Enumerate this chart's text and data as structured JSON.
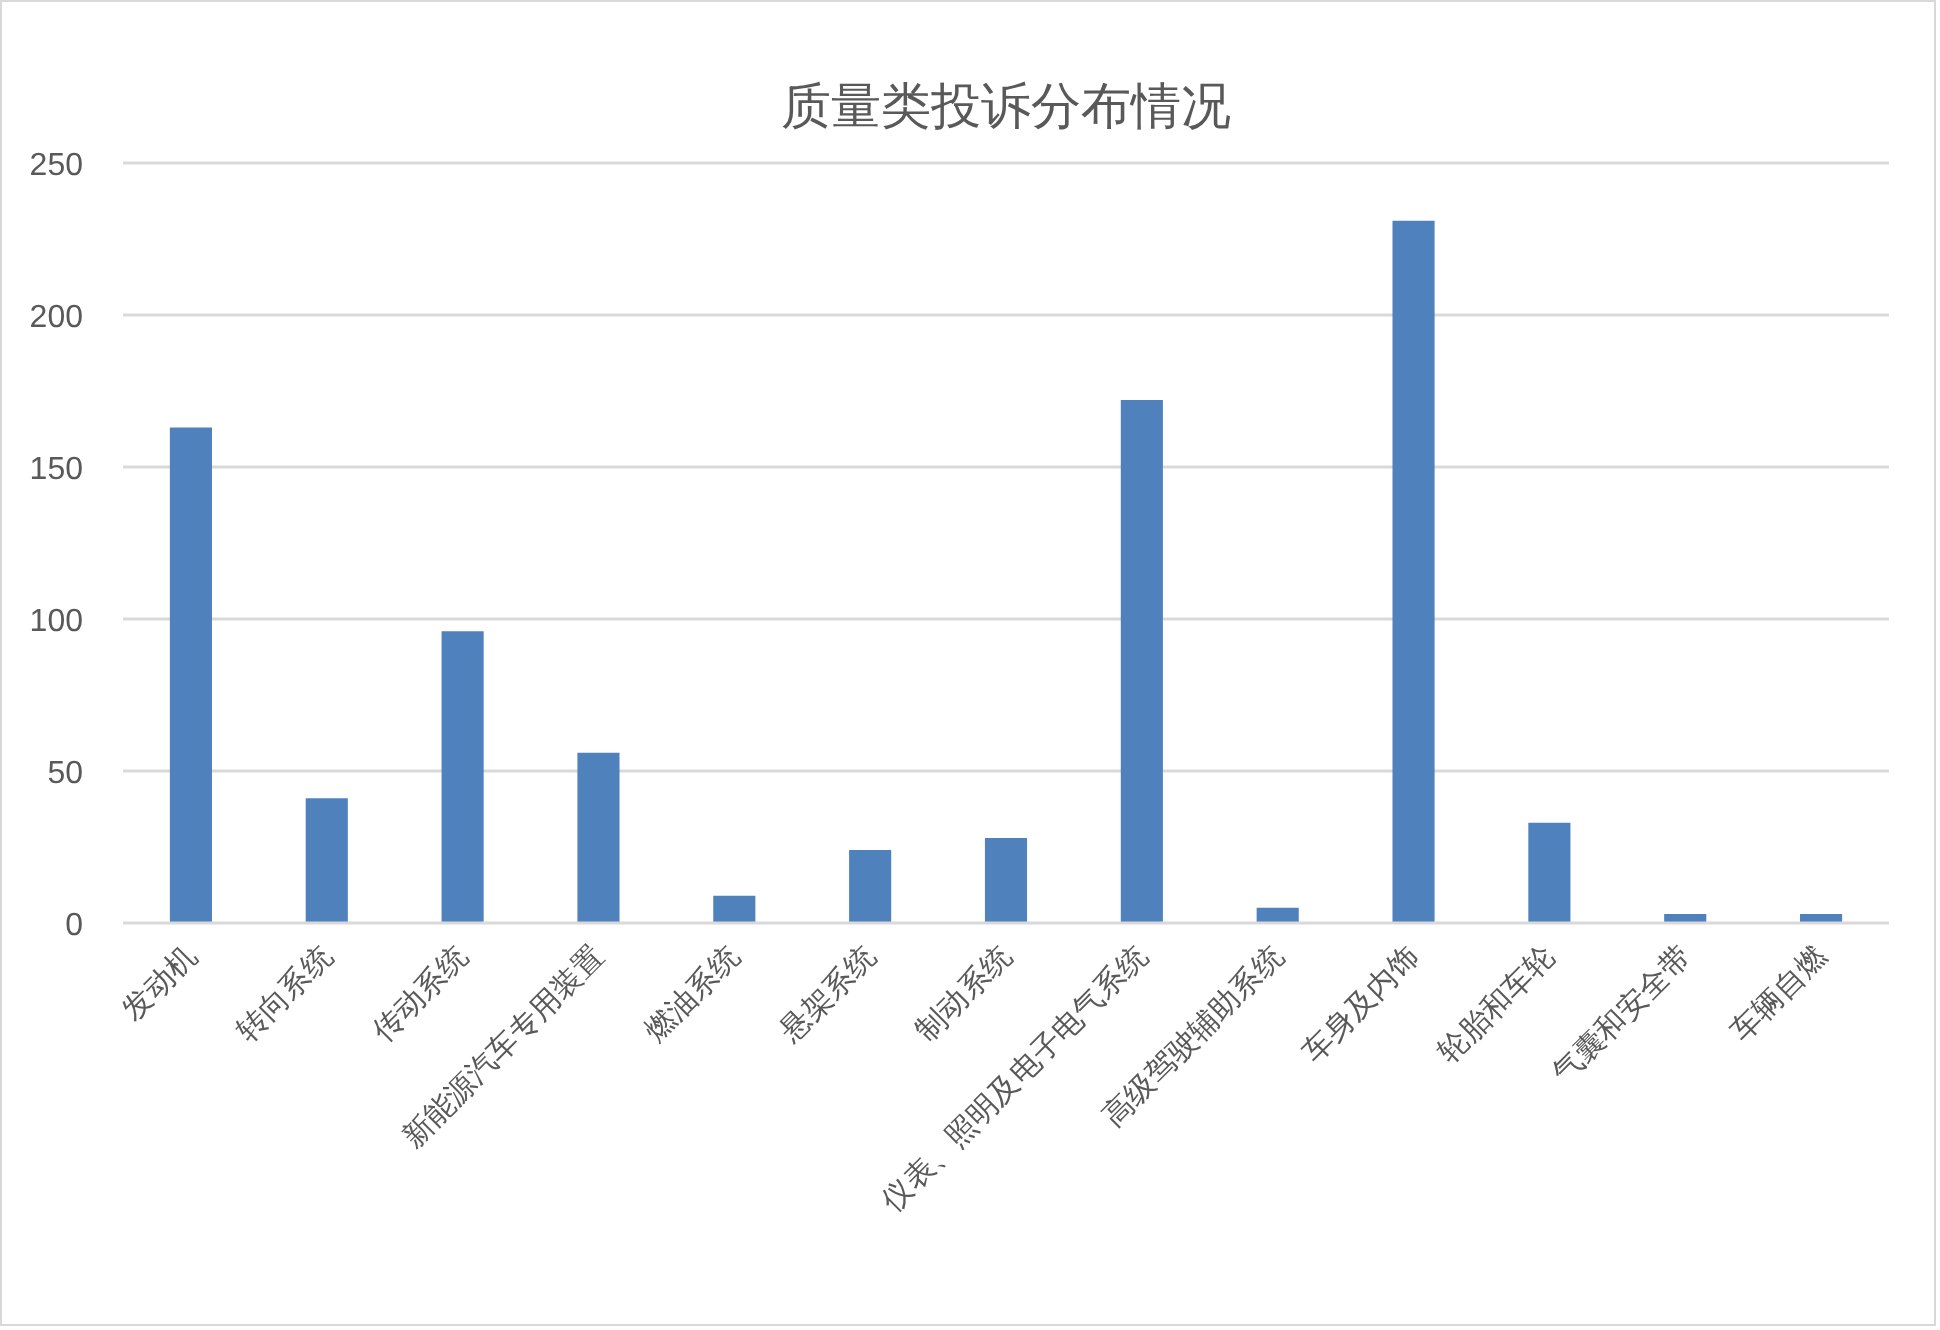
{
  "chart_data": {
    "type": "bar",
    "title": "质量类投诉分布情况",
    "categories": [
      "发动机",
      "转向系统",
      "传动系统",
      "新能源汽车专用装置",
      "燃油系统",
      "悬架系统",
      "制动系统",
      "仪表、照明及电子电气系统",
      "高级驾驶辅助系统",
      "车身及内饰",
      "轮胎和车轮",
      "气囊和安全带",
      "车辆自燃"
    ],
    "values": [
      163,
      41,
      96,
      56,
      9,
      24,
      28,
      172,
      5,
      231,
      33,
      3,
      3
    ],
    "color": "#4f81bd",
    "ylim": [
      0,
      250
    ],
    "yticks": [
      0,
      50,
      100,
      150,
      200,
      250
    ],
    "grid": "y"
  }
}
